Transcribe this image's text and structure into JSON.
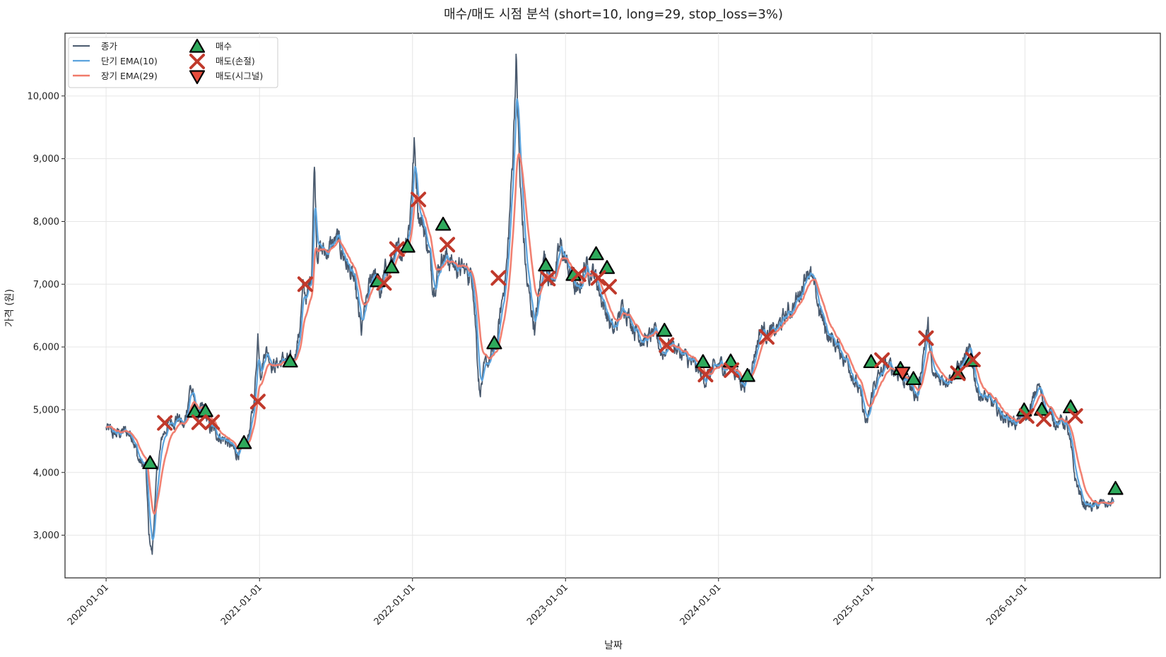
{
  "chart_data": {
    "type": "line",
    "title": "매수/매도 시점 분석 (short=10, long=29, stop_loss=3%)",
    "xlabel": "날짜",
    "ylabel": "가격 (원)",
    "x_ticks": [
      "2020-01-01",
      "2021-01-01",
      "2022-01-01",
      "2023-01-01",
      "2024-01-01",
      "2025-01-01",
      "2026-01-01"
    ],
    "y_ticks": [
      3000,
      4000,
      5000,
      6000,
      7000,
      8000,
      9000,
      10000
    ],
    "y_tick_labels": [
      "3,000",
      "4,000",
      "5,000",
      "6,000",
      "7,000",
      "8,000",
      "9,000",
      "10,000"
    ],
    "xlim": [
      "2019-09-25",
      "2026-11-20"
    ],
    "ylim": [
      2320,
      11000
    ],
    "grid": true,
    "legend_position": "top-left",
    "colors": {
      "close": "#4a5a6e",
      "ema_short": "#5ba3dd",
      "ema_long": "#f07a6a",
      "buy": "#2eaa5c",
      "sell_stop": "#c0392b",
      "sell_signal": "#e74c3c"
    },
    "series": [
      {
        "name": "종가",
        "key": "close"
      },
      {
        "name": "단기 EMA(10)",
        "key": "ema_short"
      },
      {
        "name": "장기 EMA(29)",
        "key": "ema_long"
      }
    ],
    "markers": [
      {
        "name": "매수",
        "key": "buy"
      },
      {
        "name": "매도(손절)",
        "key": "sell_stop"
      },
      {
        "name": "매도(시그널)",
        "key": "sell_signal"
      }
    ],
    "close_anchors": [
      [
        "2020-01-01",
        4700
      ],
      [
        "2020-01-20",
        4600
      ],
      [
        "2020-02-15",
        4650
      ],
      [
        "2020-03-05",
        4600
      ],
      [
        "2020-03-18",
        4200
      ],
      [
        "2020-04-05",
        4050
      ],
      [
        "2020-04-12",
        3000
      ],
      [
        "2020-04-20",
        2700
      ],
      [
        "2020-05-01",
        4000
      ],
      [
        "2020-05-15",
        4600
      ],
      [
        "2020-06-01",
        4800
      ],
      [
        "2020-06-20",
        4900
      ],
      [
        "2020-07-05",
        4700
      ],
      [
        "2020-07-20",
        5400
      ],
      [
        "2020-08-05",
        4900
      ],
      [
        "2020-08-20",
        5000
      ],
      [
        "2020-09-05",
        4700
      ],
      [
        "2020-09-25",
        4600
      ],
      [
        "2020-10-15",
        4500
      ],
      [
        "2020-11-05",
        4300
      ],
      [
        "2020-11-25",
        4400
      ],
      [
        "2020-12-10",
        4700
      ],
      [
        "2020-12-20",
        5200
      ],
      [
        "2020-12-28",
        6200
      ],
      [
        "2021-01-05",
        5600
      ],
      [
        "2021-01-15",
        6000
      ],
      [
        "2021-02-05",
        5700
      ],
      [
        "2021-03-01",
        5800
      ],
      [
        "2021-03-20",
        5700
      ],
      [
        "2021-04-05",
        6200
      ],
      [
        "2021-04-15",
        6900
      ],
      [
        "2021-04-25",
        6800
      ],
      [
        "2021-05-05",
        7200
      ],
      [
        "2021-05-12",
        9000
      ],
      [
        "2021-05-18",
        7600
      ],
      [
        "2021-06-05",
        7500
      ],
      [
        "2021-07-05",
        7700
      ],
      [
        "2021-07-25",
        7400
      ],
      [
        "2021-08-15",
        7000
      ],
      [
        "2021-09-01",
        6200
      ],
      [
        "2021-09-15",
        6800
      ],
      [
        "2021-10-01",
        7300
      ],
      [
        "2021-10-15",
        6800
      ],
      [
        "2021-11-01",
        7300
      ],
      [
        "2021-11-20",
        7400
      ],
      [
        "2021-12-10",
        7600
      ],
      [
        "2021-12-25",
        8000
      ],
      [
        "2022-01-05",
        9200
      ],
      [
        "2022-01-15",
        8200
      ],
      [
        "2022-02-01",
        7800
      ],
      [
        "2022-02-20",
        7000
      ],
      [
        "2022-03-15",
        7500
      ],
      [
        "2022-04-10",
        7300
      ],
      [
        "2022-05-10",
        7200
      ],
      [
        "2022-05-25",
        7100
      ],
      [
        "2022-06-10",
        5300
      ],
      [
        "2022-06-25",
        5700
      ],
      [
        "2022-07-20",
        6000
      ],
      [
        "2022-08-15",
        7400
      ],
      [
        "2022-08-28",
        9000
      ],
      [
        "2022-09-05",
        10600
      ],
      [
        "2022-09-15",
        8500
      ],
      [
        "2022-10-01",
        7000
      ],
      [
        "2022-10-20",
        6300
      ],
      [
        "2022-11-10",
        7500
      ],
      [
        "2022-11-30",
        7000
      ],
      [
        "2022-12-20",
        7600
      ],
      [
        "2023-01-10",
        7200
      ],
      [
        "2023-02-01",
        6800
      ],
      [
        "2023-02-15",
        7300
      ],
      [
        "2023-03-10",
        7200
      ],
      [
        "2023-04-01",
        6700
      ],
      [
        "2023-04-25",
        6200
      ],
      [
        "2023-05-20",
        6700
      ],
      [
        "2023-06-15",
        6300
      ],
      [
        "2023-07-10",
        6100
      ],
      [
        "2023-08-01",
        6200
      ],
      [
        "2023-08-20",
        5900
      ],
      [
        "2023-09-10",
        6100
      ],
      [
        "2023-10-01",
        5900
      ],
      [
        "2023-11-01",
        5700
      ],
      [
        "2023-12-01",
        5500
      ],
      [
        "2024-01-01",
        5700
      ],
      [
        "2024-02-01",
        5700
      ],
      [
        "2024-03-01",
        5400
      ],
      [
        "2024-03-20",
        5700
      ],
      [
        "2024-04-10",
        6300
      ],
      [
        "2024-05-10",
        6200
      ],
      [
        "2024-06-10",
        6500
      ],
      [
        "2024-07-10",
        6800
      ],
      [
        "2024-08-01",
        7300
      ],
      [
        "2024-08-20",
        6800
      ],
      [
        "2024-09-10",
        6300
      ],
      [
        "2024-10-10",
        6000
      ],
      [
        "2024-11-10",
        5700
      ],
      [
        "2024-12-05",
        5200
      ],
      [
        "2024-12-20",
        4700
      ],
      [
        "2025-01-05",
        5400
      ],
      [
        "2025-02-05",
        5700
      ],
      [
        "2025-03-05",
        5600
      ],
      [
        "2025-04-01",
        5400
      ],
      [
        "2025-04-20",
        5200
      ],
      [
        "2025-05-05",
        6000
      ],
      [
        "2025-05-15",
        6300
      ],
      [
        "2025-05-25",
        5500
      ],
      [
        "2025-06-20",
        5500
      ],
      [
        "2025-07-20",
        5600
      ],
      [
        "2025-08-10",
        5800
      ],
      [
        "2025-08-25",
        5900
      ],
      [
        "2025-09-10",
        5300
      ],
      [
        "2025-10-10",
        5100
      ],
      [
        "2025-11-10",
        4900
      ],
      [
        "2025-12-10",
        4800
      ],
      [
        "2026-01-10",
        4900
      ],
      [
        "2026-02-01",
        5400
      ],
      [
        "2026-02-20",
        5000
      ],
      [
        "2026-03-20",
        4800
      ],
      [
        "2026-04-10",
        4800
      ],
      [
        "2026-05-01",
        3900
      ],
      [
        "2026-05-20",
        3500
      ],
      [
        "2026-06-10",
        3450
      ],
      [
        "2026-07-05",
        3500
      ],
      [
        "2026-07-25",
        3500
      ],
      [
        "2026-08-01",
        3550
      ]
    ],
    "buy_signals": [
      [
        "2020-04-15",
        4150
      ],
      [
        "2020-07-30",
        4970
      ],
      [
        "2020-08-25",
        4980
      ],
      [
        "2020-11-25",
        4470
      ],
      [
        "2021-03-15",
        5770
      ],
      [
        "2021-10-10",
        7050
      ],
      [
        "2021-11-12",
        7270
      ],
      [
        "2021-12-20",
        7600
      ],
      [
        "2022-03-15",
        7950
      ],
      [
        "2022-07-15",
        6060
      ],
      [
        "2022-11-15",
        7300
      ],
      [
        "2023-01-20",
        7150
      ],
      [
        "2023-03-15",
        7480
      ],
      [
        "2023-04-10",
        7260
      ],
      [
        "2023-08-25",
        6260
      ],
      [
        "2023-11-25",
        5760
      ],
      [
        "2024-01-30",
        5770
      ],
      [
        "2024-03-10",
        5540
      ],
      [
        "2024-12-30",
        5760
      ],
      [
        "2025-03-10",
        5650
      ],
      [
        "2025-04-10",
        5490
      ],
      [
        "2025-07-25",
        5580
      ],
      [
        "2025-08-25",
        5780
      ],
      [
        "2025-12-30",
        4990
      ],
      [
        "2026-02-10",
        5000
      ],
      [
        "2026-04-20",
        5040
      ],
      [
        "2026-08-05",
        3740
      ]
    ],
    "sell_stop_signals": [
      [
        "2020-05-20",
        4790
      ],
      [
        "2020-08-10",
        4800
      ],
      [
        "2020-09-10",
        4800
      ],
      [
        "2020-12-28",
        5130
      ],
      [
        "2021-04-20",
        7000
      ],
      [
        "2021-10-25",
        7020
      ],
      [
        "2021-11-25",
        7560
      ],
      [
        "2022-01-15",
        8350
      ],
      [
        "2022-03-25",
        7630
      ],
      [
        "2022-07-25",
        7100
      ],
      [
        "2022-11-20",
        7090
      ],
      [
        "2023-02-01",
        7160
      ],
      [
        "2023-03-20",
        7100
      ],
      [
        "2023-04-15",
        6960
      ],
      [
        "2023-08-30",
        6030
      ],
      [
        "2023-12-01",
        5560
      ],
      [
        "2024-02-01",
        5630
      ],
      [
        "2024-04-25",
        6160
      ],
      [
        "2025-01-25",
        5790
      ],
      [
        "2025-05-10",
        6140
      ],
      [
        "2025-07-25",
        5580
      ],
      [
        "2025-08-30",
        5800
      ],
      [
        "2026-01-05",
        4900
      ],
      [
        "2026-02-15",
        4850
      ],
      [
        "2026-05-01",
        4900
      ]
    ],
    "sell_signal_signals": [
      [
        "2025-03-15",
        5590
      ]
    ]
  },
  "legend": {
    "close": "종가",
    "ema_short": "단기 EMA(10)",
    "ema_long": "장기 EMA(29)",
    "buy": "매수",
    "sell_stop": "매도(손절)",
    "sell_signal": "매도(시그널)"
  }
}
